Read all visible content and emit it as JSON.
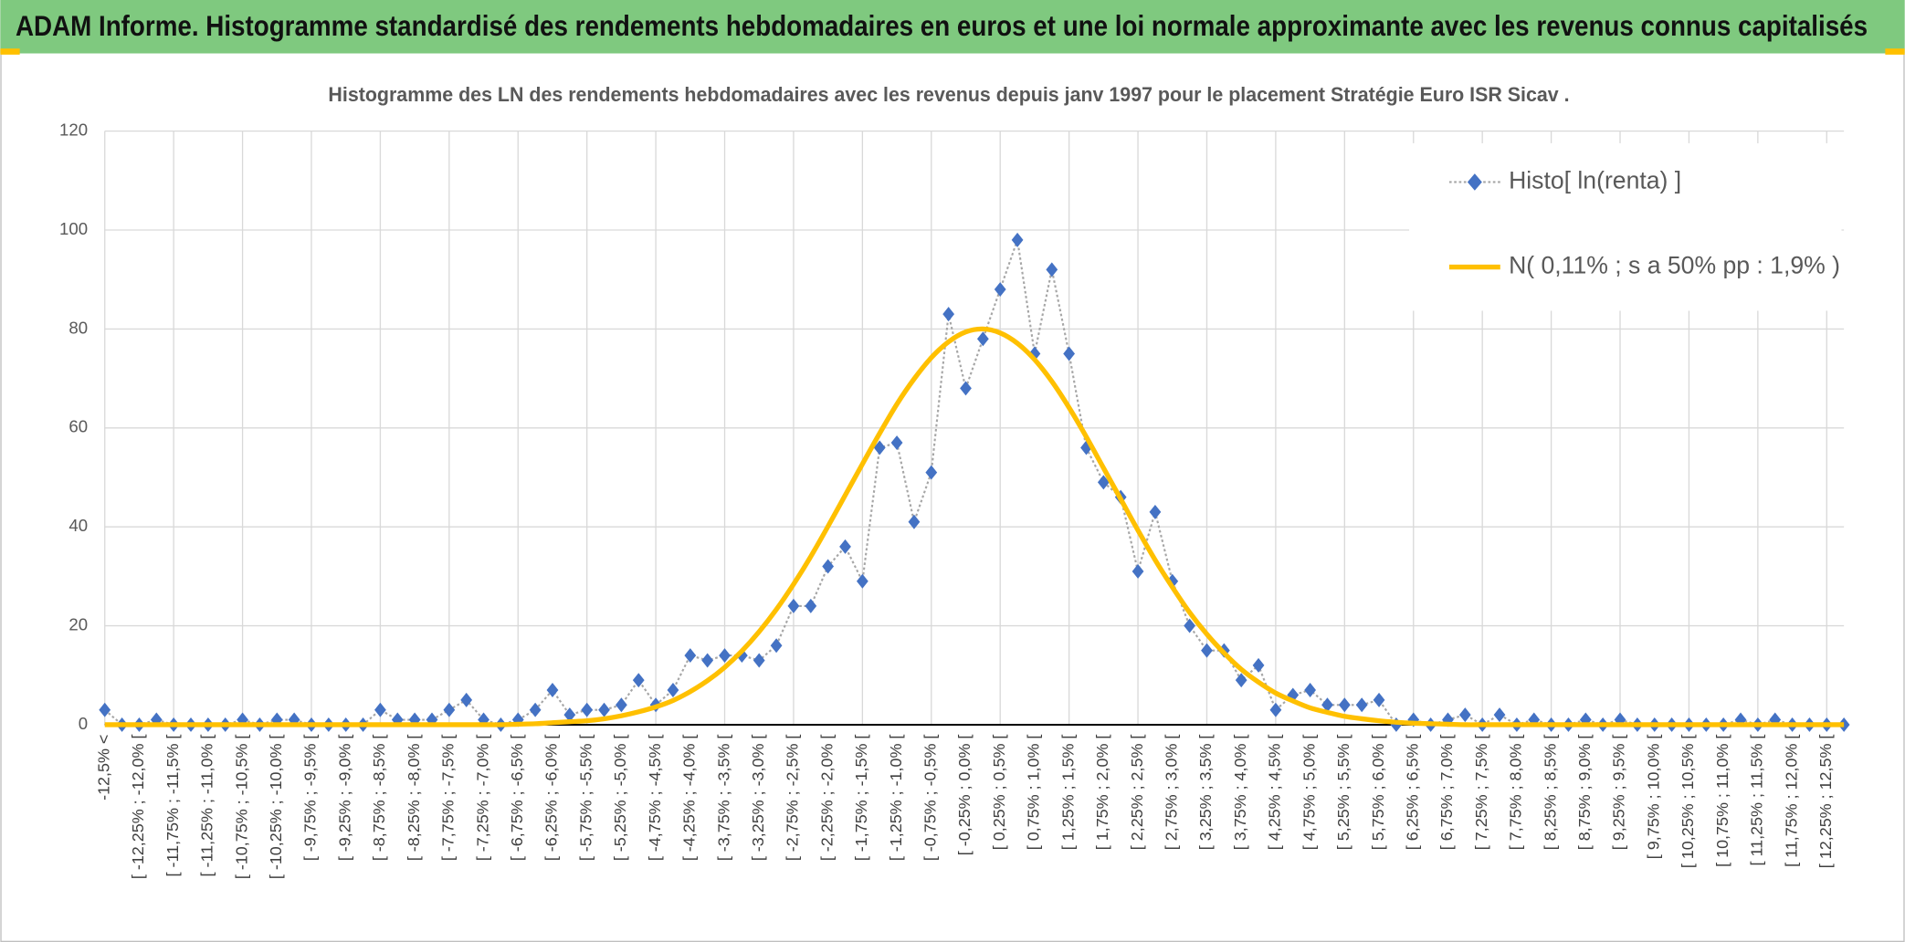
{
  "chart_data": {
    "type": "line",
    "title": "ADAM Informe. Histogramme standardisé des rendements hebdomadaires en euros et une loi normale approximante avec les revenus connus capitalisés",
    "subtitle": "Histogramme des LN des rendements hebdomadaires avec les revenus depuis janv 1997 pour le placement Stratégie  Euro ISR Sicav .",
    "categories": [
      "-12,5% <",
      null,
      "[ -12,25% ; -12,0% [",
      null,
      "[ -11,75% ; -11,5% [",
      null,
      "[ -11,25% ; -11,0% [",
      null,
      "[ -10,75% ; -10,5% [",
      null,
      "[ -10,25% ; -10,0% [",
      null,
      "[ -9,75% ; -9,5% [",
      null,
      "[ -9,25% ; -9,0% [",
      null,
      "[ -8,75% ; -8,5% [",
      null,
      "[ -8,25% ; -8,0% [",
      null,
      "[ -7,75% ; -7,5% [",
      null,
      "[ -7,25% ; -7,0% [",
      null,
      "[ -6,75% ; -6,5% [",
      null,
      "[ -6,25% ; -6,0% [",
      null,
      "[ -5,75% ; -5,5% [",
      null,
      "[ -5,25% ; -5,0% [",
      null,
      "[ -4,75% ; -4,5% [",
      null,
      "[ -4,25% ; -4,0% [",
      null,
      "[ -3,75% ; -3,5% [",
      null,
      "[ -3,25% ; -3,0% [",
      null,
      "[ -2,75% ; -2,5% [",
      null,
      "[ -2,25% ; -2,0% [",
      null,
      "[ -1,75% ; -1,5% [",
      null,
      "[ -1,25% ; -1,0% [",
      null,
      "[ -0,75% ; -0,5% [",
      null,
      "[ -0,25% ; 0,0% [",
      null,
      "[ 0,25% ; 0,5% [",
      null,
      "[ 0,75% ; 1,0% [",
      null,
      "[ 1,25% ; 1,5% [",
      null,
      "[ 1,75% ; 2,0% [",
      null,
      "[ 2,25% ; 2,5% [",
      null,
      "[ 2,75% ; 3,0% [",
      null,
      "[ 3,25% ; 3,5% [",
      null,
      "[ 3,75% ; 4,0% [",
      null,
      "[ 4,25% ; 4,5% [",
      null,
      "[ 4,75% ; 5,0% [",
      null,
      "[ 5,25% ; 5,5% [",
      null,
      "[ 5,75% ; 6,0% [",
      null,
      "[ 6,25% ; 6,5% [",
      null,
      "[ 6,75% ; 7,0% [",
      null,
      "[ 7,25% ; 7,5% [",
      null,
      "[ 7,75% ; 8,0% [",
      null,
      "[ 8,25% ; 8,5% [",
      null,
      "[ 8,75% ; 9,0% [",
      null,
      "[ 9,25% ; 9,5% [",
      null,
      "[ 9,75% ; 10,0% [",
      null,
      "[ 10,25% ; 10,5% [",
      null,
      "[ 10,75% ; 11,0% [",
      null,
      "[ 11,25% ; 11,5% [",
      null,
      "[ 11,75% ; 12,0% [",
      null,
      "[ 12,25% ; 12,5% [",
      null
    ],
    "series": [
      {
        "name": "Histo[ ln(renta) ]",
        "color": "#4472c4",
        "line_color": "#a6a6a6",
        "marker": "diamond",
        "values": [
          3,
          0,
          0,
          1,
          0,
          0,
          0,
          0,
          1,
          0,
          1,
          1,
          0,
          0,
          0,
          0,
          3,
          1,
          1,
          1,
          3,
          5,
          1,
          0,
          1,
          3,
          7,
          2,
          3,
          3,
          4,
          9,
          4,
          7,
          14,
          13,
          14,
          14,
          13,
          16,
          24,
          24,
          32,
          36,
          29,
          56,
          57,
          41,
          51,
          83,
          68,
          78,
          88,
          98,
          75,
          92,
          75,
          56,
          49,
          46,
          31,
          43,
          29,
          20,
          15,
          15,
          9,
          12,
          3,
          6,
          7,
          4,
          4,
          4,
          5,
          0,
          1,
          0,
          1,
          2,
          0,
          2,
          0,
          1,
          0,
          0,
          1,
          0,
          1,
          0,
          0,
          0,
          0,
          0,
          0,
          1,
          0,
          1,
          0,
          0,
          0,
          0
        ]
      },
      {
        "name": "N( 0,11% ; s a 50% pp : 1,9% )",
        "color": "#ffc000",
        "marker": "none",
        "values": [
          0,
          0,
          0,
          0,
          0,
          0,
          0,
          0,
          0,
          0,
          0,
          0,
          0,
          0,
          0,
          0,
          0,
          0,
          0,
          0,
          0,
          0,
          0,
          0,
          0.1,
          0.2,
          0.4,
          0.6,
          0.8,
          1.2,
          1.8,
          2.6,
          3.6,
          4.9,
          6.7,
          8.9,
          11.6,
          14.9,
          18.8,
          23.3,
          28.4,
          34.0,
          40.1,
          46.4,
          52.7,
          58.9,
          64.8,
          69.9,
          74.2,
          77.4,
          79.4,
          80,
          79.2,
          77.1,
          73.8,
          69.4,
          64.1,
          58.2,
          51.9,
          45.6,
          39.3,
          33.3,
          27.8,
          22.7,
          18.3,
          14.5,
          11.2,
          8.6,
          6.4,
          4.8,
          3.4,
          2.5,
          1.7,
          1.2,
          0.8,
          0.5,
          0.3,
          0.2,
          0.1,
          0,
          0,
          0,
          0,
          0,
          0,
          0,
          0,
          0,
          0,
          0,
          0,
          0,
          0,
          0,
          0,
          0,
          0,
          0,
          0,
          0,
          0,
          0
        ]
      }
    ],
    "ylim": [
      0,
      120
    ],
    "yticks": [
      0,
      20,
      40,
      60,
      80,
      100,
      120
    ],
    "grid": true,
    "legend": "top-right"
  }
}
